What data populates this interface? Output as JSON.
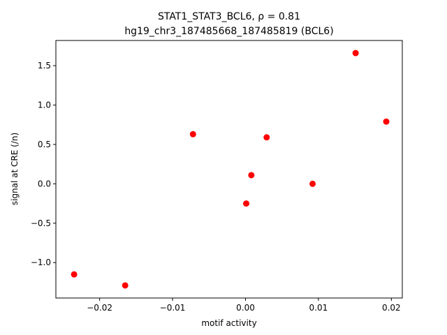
{
  "chart_data": {
    "type": "scatter",
    "title_line1": "STAT1_STAT3_BCL6, ρ = 0.81",
    "title_line2": "hg19_chr3_187485668_187485819 (BCL6)",
    "xlabel": "motif activity",
    "ylabel": "signal at CRE (/n)",
    "xlim": [
      -0.026,
      0.0215
    ],
    "ylim": [
      -1.45,
      1.82
    ],
    "xticks": [
      -0.02,
      -0.01,
      0.0,
      0.01,
      0.02
    ],
    "xtick_labels": [
      "−0.02",
      "−0.01",
      "0.00",
      "0.01",
      "0.02"
    ],
    "yticks": [
      -1.0,
      -0.5,
      0.0,
      0.5,
      1.0,
      1.5
    ],
    "ytick_labels": [
      "−1.0",
      "−0.5",
      "0.0",
      "0.5",
      "1.0",
      "1.5"
    ],
    "marker_color": "#ff0000",
    "grid": false,
    "points": [
      {
        "x": -0.0235,
        "y": -1.15
      },
      {
        "x": -0.0165,
        "y": -1.29
      },
      {
        "x": -0.0072,
        "y": 0.63
      },
      {
        "x": 0.0001,
        "y": -0.25
      },
      {
        "x": 0.0008,
        "y": 0.11
      },
      {
        "x": 0.0029,
        "y": 0.59
      },
      {
        "x": 0.0092,
        "y": 0.0
      },
      {
        "x": 0.0151,
        "y": 1.66
      },
      {
        "x": 0.0193,
        "y": 0.79
      }
    ]
  }
}
